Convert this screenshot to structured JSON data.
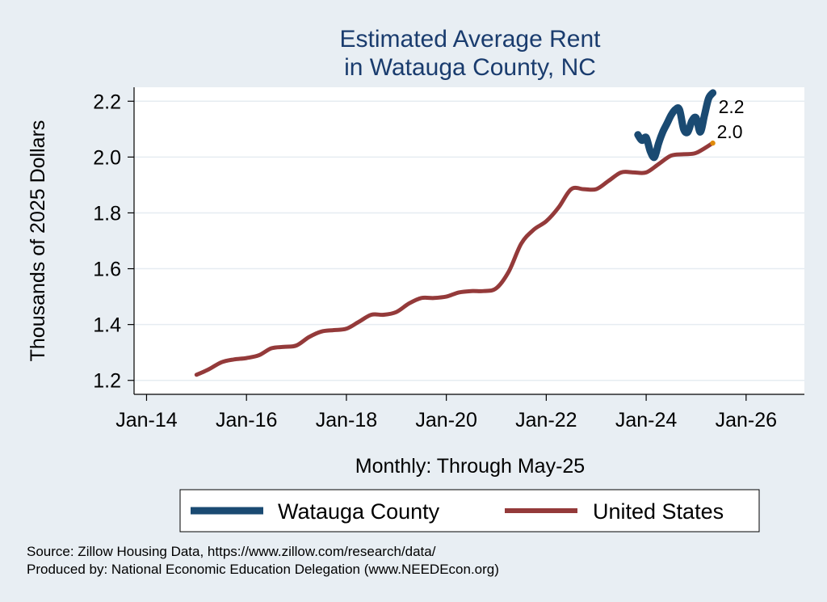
{
  "chart_data": {
    "type": "line",
    "title": [
      "Estimated Average Rent",
      "in Watauga County, NC"
    ],
    "ylabel": "Thousands of 2025 Dollars",
    "xlabel": "Monthly: Through May-25",
    "ylim": [
      1.15,
      2.25
    ],
    "yticks": [
      1.2,
      1.4,
      1.6,
      1.8,
      2.0,
      2.2
    ],
    "ytick_labels": [
      "1.2",
      "1.4",
      "1.6",
      "1.8",
      "2.0",
      "2.2"
    ],
    "xlim": [
      "2013-10",
      "2027-03"
    ],
    "xticks": [
      "2014-01",
      "2016-01",
      "2018-01",
      "2020-01",
      "2022-01",
      "2024-01",
      "2026-01"
    ],
    "xtick_labels": [
      "Jan-14",
      "Jan-16",
      "Jan-18",
      "Jan-20",
      "Jan-22",
      "Jan-24",
      "Jan-26"
    ],
    "grid": true,
    "legend_position": "bottom",
    "series": [
      {
        "name": "Watauga County",
        "color": "#1a4a72",
        "end_label": "2.2",
        "points": [
          [
            "2023-11",
            2.08
          ],
          [
            "2023-12",
            2.06
          ],
          [
            "2024-01",
            2.07
          ],
          [
            "2024-02",
            2.02
          ],
          [
            "2024-03",
            2.0
          ],
          [
            "2024-04",
            2.05
          ],
          [
            "2024-05",
            2.09
          ],
          [
            "2024-06",
            2.12
          ],
          [
            "2024-07",
            2.15
          ],
          [
            "2024-08",
            2.17
          ],
          [
            "2024-09",
            2.17
          ],
          [
            "2024-10",
            2.1
          ],
          [
            "2024-11",
            2.09
          ],
          [
            "2024-12",
            2.13
          ],
          [
            "2025-01",
            2.14
          ],
          [
            "2025-02",
            2.09
          ],
          [
            "2025-03",
            2.15
          ],
          [
            "2025-04",
            2.21
          ],
          [
            "2025-05",
            2.23
          ]
        ]
      },
      {
        "name": "United States",
        "color": "#943a3a",
        "end_label": "2.0",
        "points": [
          [
            "2015-01",
            1.22
          ],
          [
            "2015-04",
            1.24
          ],
          [
            "2015-07",
            1.265
          ],
          [
            "2015-10",
            1.275
          ],
          [
            "2016-01",
            1.28
          ],
          [
            "2016-04",
            1.29
          ],
          [
            "2016-07",
            1.315
          ],
          [
            "2016-10",
            1.32
          ],
          [
            "2017-01",
            1.325
          ],
          [
            "2017-04",
            1.355
          ],
          [
            "2017-07",
            1.375
          ],
          [
            "2017-10",
            1.38
          ],
          [
            "2018-01",
            1.385
          ],
          [
            "2018-04",
            1.41
          ],
          [
            "2018-07",
            1.435
          ],
          [
            "2018-10",
            1.435
          ],
          [
            "2019-01",
            1.445
          ],
          [
            "2019-04",
            1.475
          ],
          [
            "2019-07",
            1.495
          ],
          [
            "2019-10",
            1.495
          ],
          [
            "2020-01",
            1.5
          ],
          [
            "2020-04",
            1.515
          ],
          [
            "2020-07",
            1.52
          ],
          [
            "2020-10",
            1.52
          ],
          [
            "2021-01",
            1.53
          ],
          [
            "2021-04",
            1.59
          ],
          [
            "2021-07",
            1.69
          ],
          [
            "2021-10",
            1.74
          ],
          [
            "2022-01",
            1.77
          ],
          [
            "2022-04",
            1.82
          ],
          [
            "2022-07",
            1.885
          ],
          [
            "2022-10",
            1.885
          ],
          [
            "2023-01",
            1.885
          ],
          [
            "2023-04",
            1.915
          ],
          [
            "2023-07",
            1.945
          ],
          [
            "2023-10",
            1.945
          ],
          [
            "2024-01",
            1.945
          ],
          [
            "2024-04",
            1.975
          ],
          [
            "2024-07",
            2.005
          ],
          [
            "2024-10",
            2.01
          ],
          [
            "2025-01",
            2.015
          ],
          [
            "2025-05",
            2.05
          ]
        ]
      }
    ],
    "end_marker_color": "#e08b0b"
  },
  "notes": [
    "Source: Zillow Housing Data, https://www.zillow.com/research/data/",
    "Produced by: National Economic Education Delegation (www.NEEDEcon.org)"
  ]
}
